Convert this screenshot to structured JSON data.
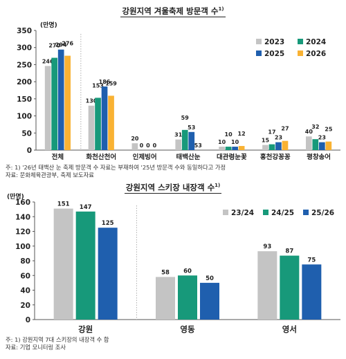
{
  "chart_data": [
    {
      "type": "bar",
      "title": "강원지역 겨울축제 방문객 수",
      "title_note_marker": "1)",
      "ylabel": "(만명)",
      "ylim": [
        0,
        350
      ],
      "yticks": [
        0,
        50,
        100,
        150,
        200,
        250,
        300,
        350
      ],
      "grid": false,
      "legend_position": "top-right",
      "categories": [
        "전체",
        "화천산천어",
        "인제빙어",
        "태백산눈",
        "대관령눈꽃",
        "홍천강꽁꽁",
        "평창송어"
      ],
      "series": [
        {
          "name": "2023",
          "color": "#c4c4c4",
          "values": [
            246,
            130,
            20,
            31,
            10,
            15,
            40
          ],
          "labels": [
            "246",
            "130",
            "20",
            "31",
            "10",
            "15",
            "40"
          ]
        },
        {
          "name": "2024",
          "color": "#17997a",
          "values": [
            270,
            153,
            0,
            59,
            10,
            17,
            32
          ],
          "labels": [
            "270",
            "153",
            "0",
            "59",
            "10",
            "17",
            "32"
          ]
        },
        {
          "name": "2025",
          "color": "#1f5fae",
          "values": [
            294,
            186,
            0,
            53,
            10,
            23,
            23
          ],
          "labels": [
            "294",
            "186",
            "0",
            "53",
            "10",
            "23",
            "23"
          ]
        },
        {
          "name": "2026",
          "color": "#f9b233",
          "values": [
            276,
            159,
            0,
            null,
            12,
            27,
            25
          ],
          "labels": [
            "276",
            "159",
            "0",
            "53",
            "12",
            "27",
            "25"
          ]
        }
      ]
    },
    {
      "type": "bar",
      "title": "강원지역 스키장 내장객 수",
      "title_note_marker": "1)",
      "ylabel": "(만명)",
      "ylim": [
        0,
        160
      ],
      "yticks": [
        0,
        20,
        40,
        60,
        80,
        100,
        120,
        140,
        160
      ],
      "grid": false,
      "legend_position": "top-right",
      "categories": [
        "강원",
        "영동",
        "영서"
      ],
      "series": [
        {
          "name": "23/24",
          "color": "#c4c4c4",
          "values": [
            151,
            58,
            93
          ]
        },
        {
          "name": "24/25",
          "color": "#17997a",
          "values": [
            147,
            60,
            87
          ]
        },
        {
          "name": "25/26",
          "color": "#1f5fae",
          "values": [
            125,
            50,
            75
          ]
        }
      ]
    }
  ],
  "notes": {
    "chart1_note": "주: 1) '26년 태백산 눈 축제 방문객 수 자료는 부재하여 '25년 방문객 수와 동일하다고 가정",
    "chart1_source": "자료: 문화체육관광부, 축제 보도자료",
    "chart2_note": "주: 1) 강원지역 7대 스키장의 내장객 수 합",
    "chart2_source": "자료: 기업 모니터링 조사"
  }
}
